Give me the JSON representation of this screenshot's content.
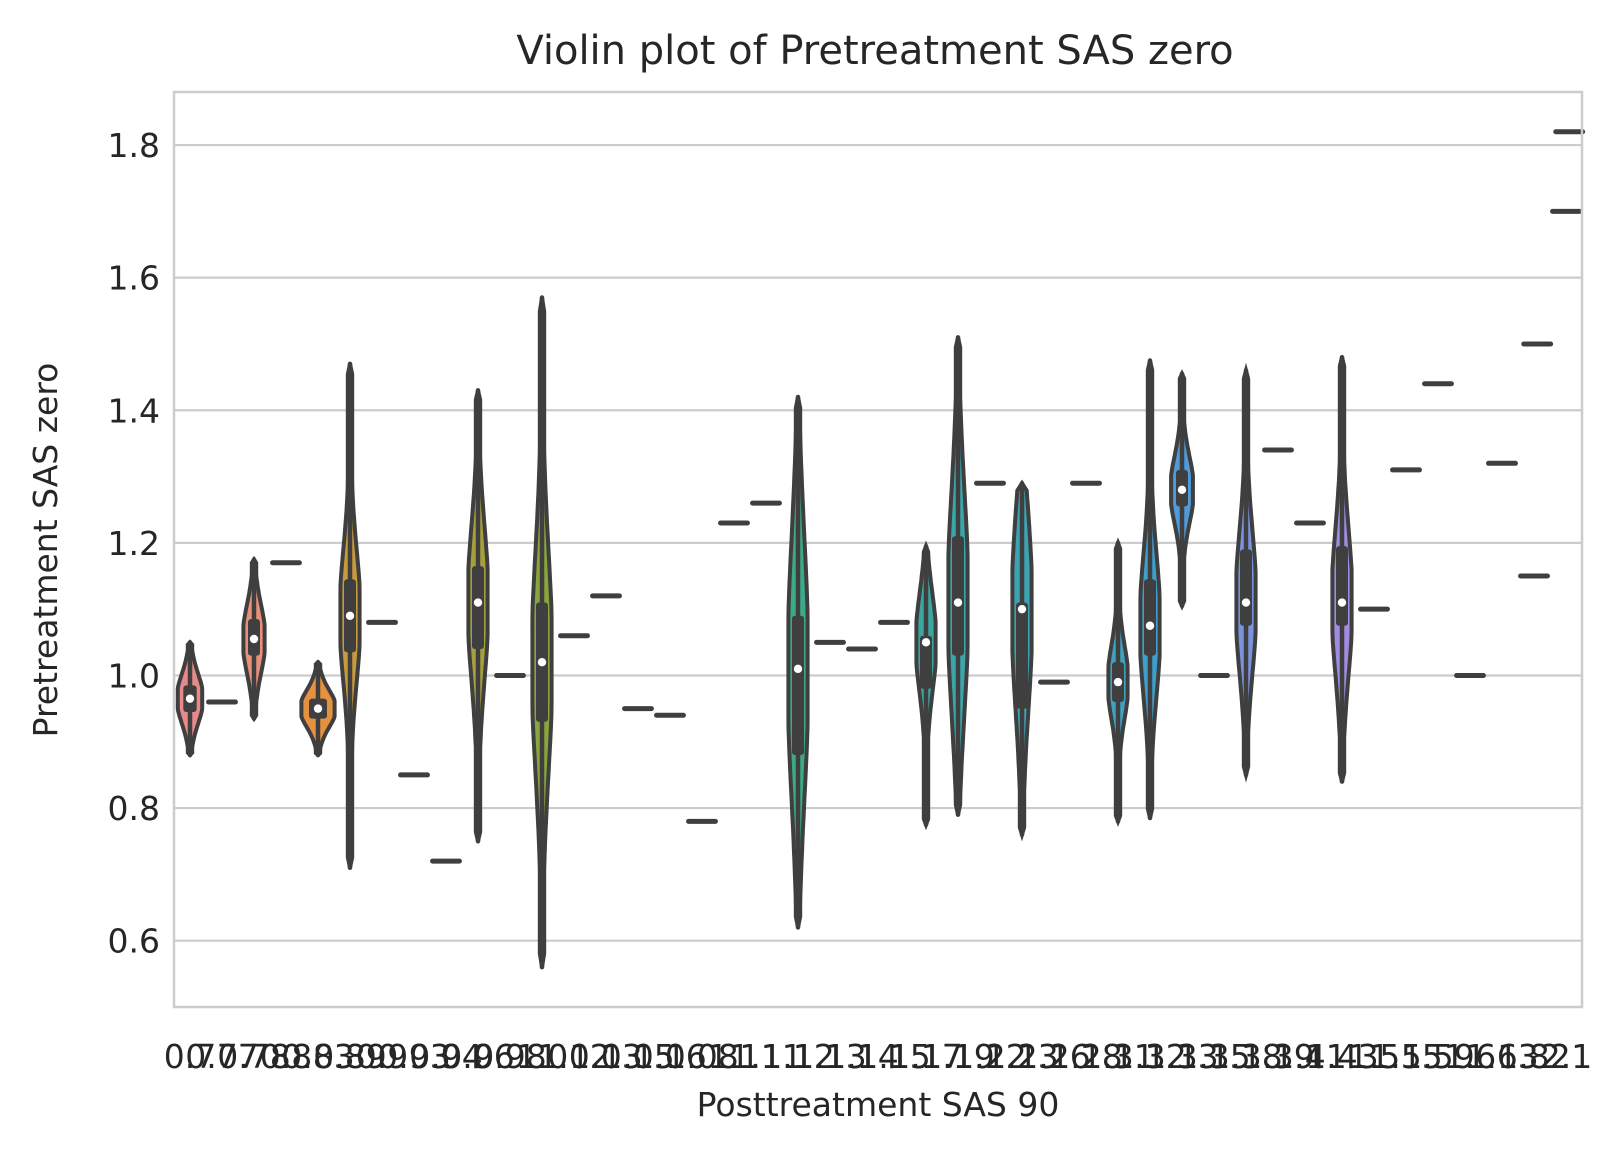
{
  "chart_data": {
    "type": "violin",
    "title": "Violin plot of Pretreatment SAS zero",
    "xlabel": "Posttreatment SAS 90",
    "ylabel": "Pretreatment SAS zero",
    "ylim": [
      0.5,
      1.88
    ],
    "yticks": [
      0.6,
      0.8,
      1.0,
      1.2,
      1.4,
      1.6,
      1.8
    ],
    "ytick_labels": [
      "0.6",
      "0.8",
      "1.0",
      "1.2",
      "1.4",
      "1.6",
      "1.8"
    ],
    "grid": true,
    "categories": [
      "0.7",
      "0.77",
      "0.78",
      "0.8",
      "0.83",
      "0.89",
      "0.9",
      "0.93",
      "0.94",
      "0.96",
      "0.98",
      "1.0",
      "1.02",
      "1.03",
      "1.05",
      "1.06",
      "1.08",
      "1.1",
      "1.11",
      "1.12",
      "1.13",
      "1.14",
      "1.15",
      "1.17",
      "1.19",
      "1.22",
      "1.23",
      "1.26",
      "1.28",
      "1.31",
      "1.32",
      "1.33",
      "1.35",
      "1.38",
      "1.39",
      "1.41",
      "1.43",
      "1.5",
      "1.55",
      "1.59",
      "1.6",
      "1.63",
      "1.82",
      "2.1"
    ],
    "violins": [
      {
        "category": "0.7",
        "min": 0.88,
        "q1": 0.945,
        "median": 0.965,
        "q3": 0.985,
        "max": 1.05,
        "half_width": 0.38,
        "color": "#e98a8a"
      },
      {
        "category": "0.77",
        "single": 0.96
      },
      {
        "category": "0.78",
        "min": 0.935,
        "q1": 1.03,
        "median": 1.055,
        "q3": 1.085,
        "max": 1.175,
        "half_width": 0.33,
        "color": "#e8917a"
      },
      {
        "category": "0.8",
        "single": 1.17
      },
      {
        "category": "0.83",
        "min": 0.88,
        "q1": 0.935,
        "median": 0.95,
        "q3": 0.965,
        "max": 1.02,
        "half_width": 0.52,
        "color": "#e6913f"
      },
      {
        "category": "0.89",
        "min": 0.71,
        "q1": 1.035,
        "median": 1.09,
        "q3": 1.145,
        "max": 1.47,
        "half_width": 0.3,
        "color": "#c99a3c"
      },
      {
        "category": "0.9",
        "single": 1.08
      },
      {
        "category": "0.93",
        "single": 0.85
      },
      {
        "category": "0.94",
        "single": 0.72
      },
      {
        "category": "0.96",
        "min": 0.75,
        "q1": 1.04,
        "median": 1.11,
        "q3": 1.165,
        "max": 1.43,
        "half_width": 0.3,
        "color": "#a5a03c"
      },
      {
        "category": "0.98",
        "single": 1.0
      },
      {
        "category": "1.0",
        "min": 0.56,
        "q1": 0.93,
        "median": 1.02,
        "q3": 1.11,
        "max": 1.57,
        "half_width": 0.3,
        "color": "#8aa53c"
      },
      {
        "category": "1.02",
        "single": 1.06
      },
      {
        "category": "1.03",
        "single": 1.12
      },
      {
        "category": "1.05",
        "single": 0.95
      },
      {
        "category": "1.06",
        "single": 0.94
      },
      {
        "category": "1.08",
        "single": 0.78
      },
      {
        "category": "1.1",
        "single": 1.23
      },
      {
        "category": "1.11",
        "single": 1.26
      },
      {
        "category": "1.12",
        "min": 0.62,
        "q1": 0.88,
        "median": 1.01,
        "q3": 1.09,
        "max": 1.42,
        "half_width": 0.3,
        "color": "#3aaa88"
      },
      {
        "category": "1.13",
        "single": 1.05
      },
      {
        "category": "1.14",
        "single": 1.04
      },
      {
        "category": "1.15",
        "single": 1.08
      },
      {
        "category": "1.17",
        "min": 0.775,
        "q1": 0.98,
        "median": 1.05,
        "q3": 1.06,
        "max": 1.195,
        "half_width": 0.3,
        "color": "#39a7a0"
      },
      {
        "category": "1.19",
        "min": 0.79,
        "q1": 1.03,
        "median": 1.11,
        "q3": 1.21,
        "max": 1.51,
        "half_width": 0.3,
        "color": "#3aa6ab"
      },
      {
        "category": "1.22",
        "single": 1.29
      },
      {
        "category": "1.23",
        "min": 0.76,
        "q1": 0.95,
        "median": 1.1,
        "q3": 1.11,
        "max": 1.29,
        "half_width": 0.3,
        "color": "#3ba4b4"
      },
      {
        "category": "1.26",
        "single": 0.99
      },
      {
        "category": "1.28",
        "single": 1.29
      },
      {
        "category": "1.31",
        "min": 0.78,
        "q1": 0.96,
        "median": 0.99,
        "q3": 1.02,
        "max": 1.2,
        "half_width": 0.3,
        "color": "#3da2c0"
      },
      {
        "category": "1.32",
        "min": 0.785,
        "q1": 1.03,
        "median": 1.075,
        "q3": 1.145,
        "max": 1.475,
        "half_width": 0.3,
        "color": "#3e9fcc"
      },
      {
        "category": "1.33",
        "min": 1.105,
        "q1": 1.255,
        "median": 1.28,
        "q3": 1.31,
        "max": 1.455,
        "half_width": 0.34,
        "color": "#4f9ad8"
      },
      {
        "category": "1.35",
        "single": 1.0
      },
      {
        "category": "1.38",
        "min": 0.85,
        "q1": 1.075,
        "median": 1.11,
        "q3": 1.19,
        "max": 1.46,
        "half_width": 0.3,
        "color": "#7a93dd"
      },
      {
        "category": "1.39",
        "single": 1.34
      },
      {
        "category": "1.41",
        "single": 1.23
      },
      {
        "category": "1.43",
        "min": 0.84,
        "q1": 1.075,
        "median": 1.11,
        "q3": 1.195,
        "max": 1.48,
        "half_width": 0.3,
        "color": "#a08ce0"
      },
      {
        "category": "1.5",
        "single": 1.1
      },
      {
        "category": "1.55",
        "single": 1.31
      },
      {
        "category": "1.59",
        "single": 1.44
      },
      {
        "category": "1.6",
        "single": 1.0
      },
      {
        "category": "1.63",
        "single": 1.32
      },
      {
        "category": "1.82",
        "single": 1.15
      },
      {
        "category": "2.1",
        "single": 1.7
      }
    ],
    "extra_singles": [
      {
        "category_index": 43.1,
        "value": 1.5
      },
      {
        "category_index": 44.1,
        "value": 1.82
      }
    ]
  }
}
